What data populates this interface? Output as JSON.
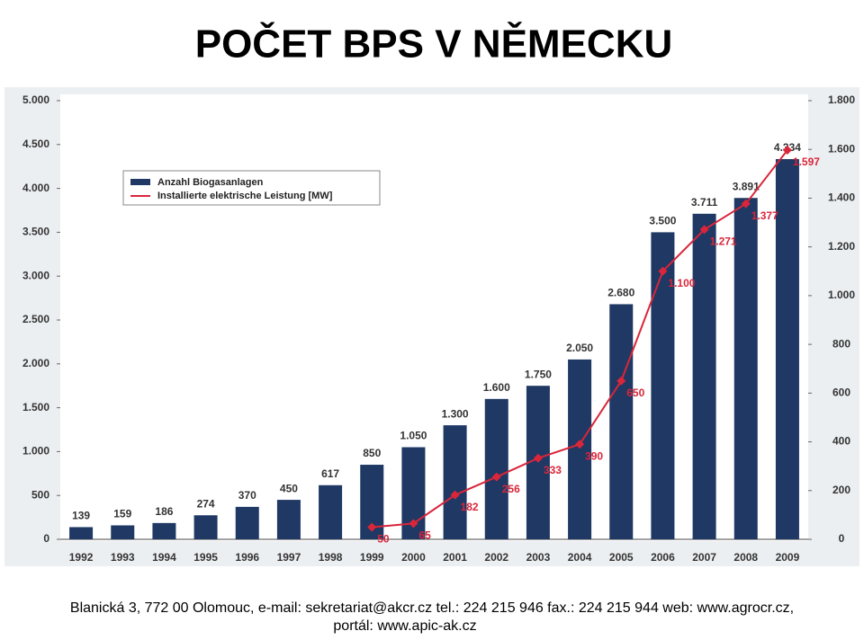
{
  "title": "POČET  BPS  V NĚMECKU",
  "chart_data": {
    "type": "bar-line",
    "categories": [
      "1992",
      "1993",
      "1994",
      "1995",
      "1996",
      "1997",
      "1998",
      "1999",
      "2000",
      "2001",
      "2002",
      "2003",
      "2004",
      "2005",
      "2006",
      "2007",
      "2008",
      "2009"
    ],
    "series": [
      {
        "name": "Anzahl Biogasanlagen",
        "color": "#1f3864",
        "type": "bar",
        "values": [
          139,
          159,
          186,
          274,
          370,
          450,
          617,
          850,
          1050,
          1300,
          1600,
          1750,
          2050,
          2680,
          3500,
          3711,
          3891,
          4334
        ],
        "value_labels": [
          "139",
          "159",
          "186",
          "274",
          "370",
          "450",
          "617",
          "850",
          "1.050",
          "1.300",
          "1.600",
          "1.750",
          "2.050",
          "2.680",
          "3.500",
          "3.711",
          "3.891",
          "4.334"
        ]
      },
      {
        "name": "Installierte elektrische Leistung [MW]",
        "color": "#d9263a",
        "type": "line",
        "axis": "y2",
        "values": [
          null,
          null,
          null,
          null,
          null,
          null,
          null,
          50,
          65,
          182,
          256,
          333,
          390,
          650,
          1100,
          1271,
          1377,
          1597
        ],
        "value_labels": [
          null,
          null,
          null,
          null,
          null,
          null,
          null,
          "50",
          "65",
          "182",
          "256",
          "333",
          "390",
          "650",
          "1.100",
          "1.271",
          "1.377",
          "1.597"
        ]
      }
    ],
    "ylim": [
      0,
      5000
    ],
    "yticks": [
      0,
      500,
      {
        "value": 1000,
        "label": "1.000"
      },
      {
        "value": 1500,
        "label": "1.500"
      },
      {
        "value": 2000,
        "label": "2.000"
      },
      {
        "value": 2500,
        "label": "2.500"
      },
      {
        "value": 3000,
        "label": "3.000"
      },
      {
        "value": 3500,
        "label": "3.500"
      },
      {
        "value": 4000,
        "label": "4.000"
      },
      {
        "value": 4500,
        "label": "4.500"
      },
      {
        "value": 5000,
        "label": "5.000"
      }
    ],
    "y2lim": [
      0,
      1800
    ],
    "y2ticks": [
      0,
      200,
      400,
      600,
      800,
      {
        "value": 1000,
        "label": "1.000"
      },
      {
        "value": 1200,
        "label": "1.200"
      },
      {
        "value": 1400,
        "label": "1.400"
      },
      {
        "value": 1600,
        "label": "1.600"
      },
      {
        "value": 1800,
        "label": "1.800"
      }
    ],
    "legend": "top-left"
  },
  "footer": {
    "lines": [
      "Blanická 3, 772 00 Olomouc, e-mail: sekretariat@akcr.cz tel.: 224 215 946 fax.: 224 215 944 web: www.agrocr.cz,",
      "portál: www.apic-ak.cz"
    ]
  }
}
